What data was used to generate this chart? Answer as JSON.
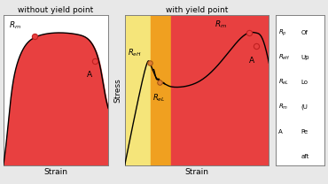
{
  "bg_color": "#e8e8e8",
  "red_fill": "#e84040",
  "yellow_fill": "#f5e57a",
  "orange_fill": "#f0a020",
  "left_title": "without yield point",
  "right_title": "with yield point",
  "stress_label": "Stress",
  "strain_label": "Strain",
  "panel_bg": "white"
}
